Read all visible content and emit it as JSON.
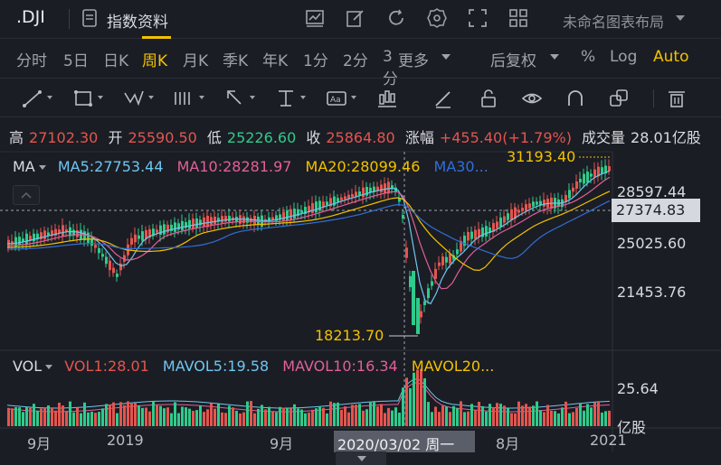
{
  "topbar": {
    "ticker": ".DJI",
    "doc_label": "指数资料",
    "layout_label": "未命名图表布局",
    "icons": [
      "chart-icon",
      "edit-icon",
      "refresh-icon",
      "settings-icon",
      "fullscreen-icon",
      "grid-icon"
    ]
  },
  "periods": {
    "tabs": [
      "分时",
      "5日",
      "日K",
      "周K",
      "月K",
      "季K",
      "年K",
      "1分",
      "2分",
      "3分",
      "更多"
    ],
    "active": "周K",
    "right": [
      "后复权",
      "%",
      "Log",
      "Auto"
    ]
  },
  "tools": [
    "line-tool-icon",
    "rect-tool-icon",
    "wave-tool-icon",
    "bars-tool-icon",
    "arrow-tool-icon",
    "measure-tool-icon",
    "text-tool-icon",
    "indicator-icon",
    "pen-icon",
    "lock-icon",
    "eye-icon",
    "magnet-icon",
    "copy-icon",
    "trash-icon"
  ],
  "quote": {
    "high_label": "高",
    "high": "27102.30",
    "open_label": "开",
    "open": "25590.50",
    "low_label": "低",
    "low": "25226.60",
    "close_label": "收",
    "close": "25864.80",
    "change_label": "涨幅",
    "change": "+455.40(+1.79%)",
    "volume_label": "成交量",
    "volume": "28.01亿股"
  },
  "ma_legend": {
    "name": "MA",
    "ma5": "MA5:27753.44",
    "ma10": "MA10:28281.97",
    "ma20": "MA20:28099.46",
    "ma30": "MA30..."
  },
  "vol_legend": {
    "name": "VOL",
    "vol1": "VOL1:28.01",
    "mavol5": "MAVOL5:19.58",
    "mavol10": "MAVOL10:16.34",
    "mavol20": "MAVOL20..."
  },
  "y_axis": [
    "28597.44",
    "25025.60",
    "21453.76"
  ],
  "current_price": "27374.83",
  "low_marker": "18213.70",
  "high_marker": "31193.40",
  "vol_axis": [
    "25.64",
    "亿股"
  ],
  "x_axis": [
    "9月",
    "2019",
    "9月",
    "8月",
    "2021"
  ],
  "crosshair_date": "2020/03/02 周一",
  "colors": {
    "up": "#e4554f",
    "down": "#2fcb8b",
    "ma5": "#6ec6f0",
    "ma10": "#e0609a",
    "ma20": "#f2c200",
    "ma30": "#2f6fd8",
    "accent": "#f2c200"
  }
}
